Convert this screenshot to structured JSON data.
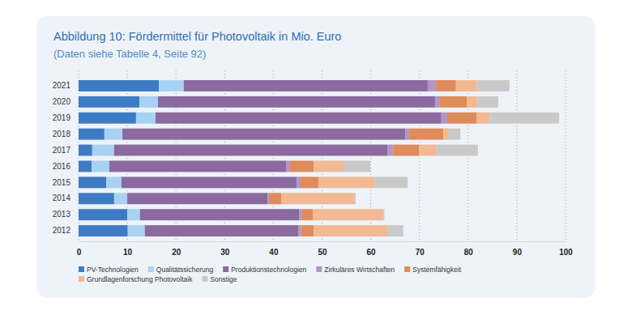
{
  "chart_data": {
    "type": "bar",
    "orientation": "horizontal",
    "stacked": true,
    "grid": true,
    "legend": "bottom",
    "title": "Abbildung 10: Fördermittel für Photovoltaik in Mio. Euro",
    "subtitle": "(Daten siehe Tabelle 4, Seite 92)",
    "categories": [
      "2021",
      "2020",
      "2019",
      "2018",
      "2017",
      "2016",
      "2015",
      "2014",
      "2013",
      "2012"
    ],
    "xlim": [
      0,
      100
    ],
    "xticks": [
      0,
      10,
      20,
      30,
      40,
      50,
      60,
      70,
      80,
      90,
      100
    ],
    "series": [
      {
        "name": "PV-Technologien",
        "color": "#3d7cc4",
        "values": [
          16.5,
          12.5,
          11.8,
          5.3,
          2.8,
          2.7,
          5.7,
          7.3,
          10.0,
          10.1
        ]
      },
      {
        "name": "Qualitätssicherung",
        "color": "#a9d1f2",
        "values": [
          5.1,
          3.8,
          4.0,
          3.7,
          4.5,
          3.6,
          3.1,
          2.7,
          2.6,
          3.5
        ]
      },
      {
        "name": "Produktionstechnologien",
        "color": "#8a6a9f",
        "values": [
          50.1,
          56.9,
          58.7,
          58.1,
          56.1,
          36.3,
          36.0,
          28.8,
          32.7,
          31.5
        ]
      },
      {
        "name": "Zirkuläres Wirtschaften",
        "color": "#b296c4",
        "values": [
          1.7,
          1.0,
          1.2,
          0.8,
          1.2,
          0.8,
          0.8,
          0.3,
          0.6,
          0.6
        ]
      },
      {
        "name": "Systemfähigkeit",
        "color": "#e08b5a",
        "values": [
          4.1,
          5.5,
          6.0,
          7.0,
          5.3,
          4.9,
          3.7,
          2.5,
          2.2,
          2.6
        ]
      },
      {
        "name": "Grundlagenforschung Photovoltaik",
        "color": "#f2b992",
        "values": [
          4.3,
          2.2,
          2.7,
          1.1,
          3.6,
          6.1,
          11.4,
          15.1,
          14.5,
          15.1
        ]
      },
      {
        "name": "Sonstige",
        "color": "#c9c9c9",
        "values": [
          6.7,
          4.3,
          14.3,
          2.4,
          8.5,
          5.5,
          6.9,
          0.2,
          0.2,
          3.3
        ]
      }
    ]
  }
}
